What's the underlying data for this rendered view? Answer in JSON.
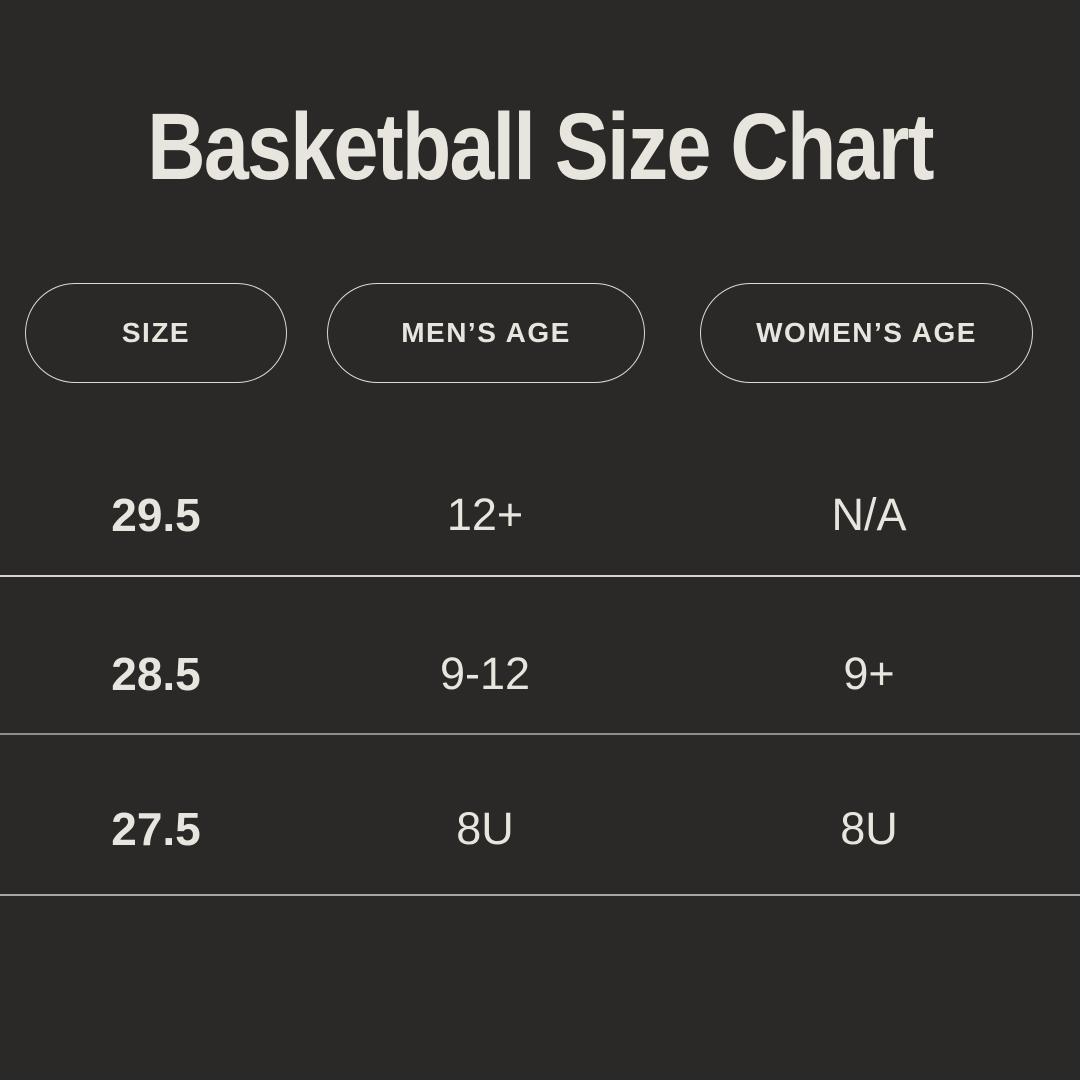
{
  "title": "Basketball Size Chart",
  "colors": {
    "background": "#2a2928",
    "text": "#e8e5de",
    "pill-border": "#dcd9d3",
    "divider-1": "#d8d5d1",
    "divider-2": "#8f8d8a",
    "divider-3": "#a9a7a3"
  },
  "chart_data": {
    "type": "table",
    "title": "Basketball Size Chart",
    "columns": [
      "SIZE",
      "MEN’S AGE",
      "WOMEN’S AGE"
    ],
    "rows": [
      [
        "29.5",
        "12+",
        "N/A"
      ],
      [
        "28.5",
        "9-12",
        "9+"
      ],
      [
        "27.5",
        "8U",
        "8U"
      ]
    ],
    "layout_hints": {
      "header_style": "outlined-pill",
      "row_separators": true,
      "theme": "dark"
    }
  }
}
